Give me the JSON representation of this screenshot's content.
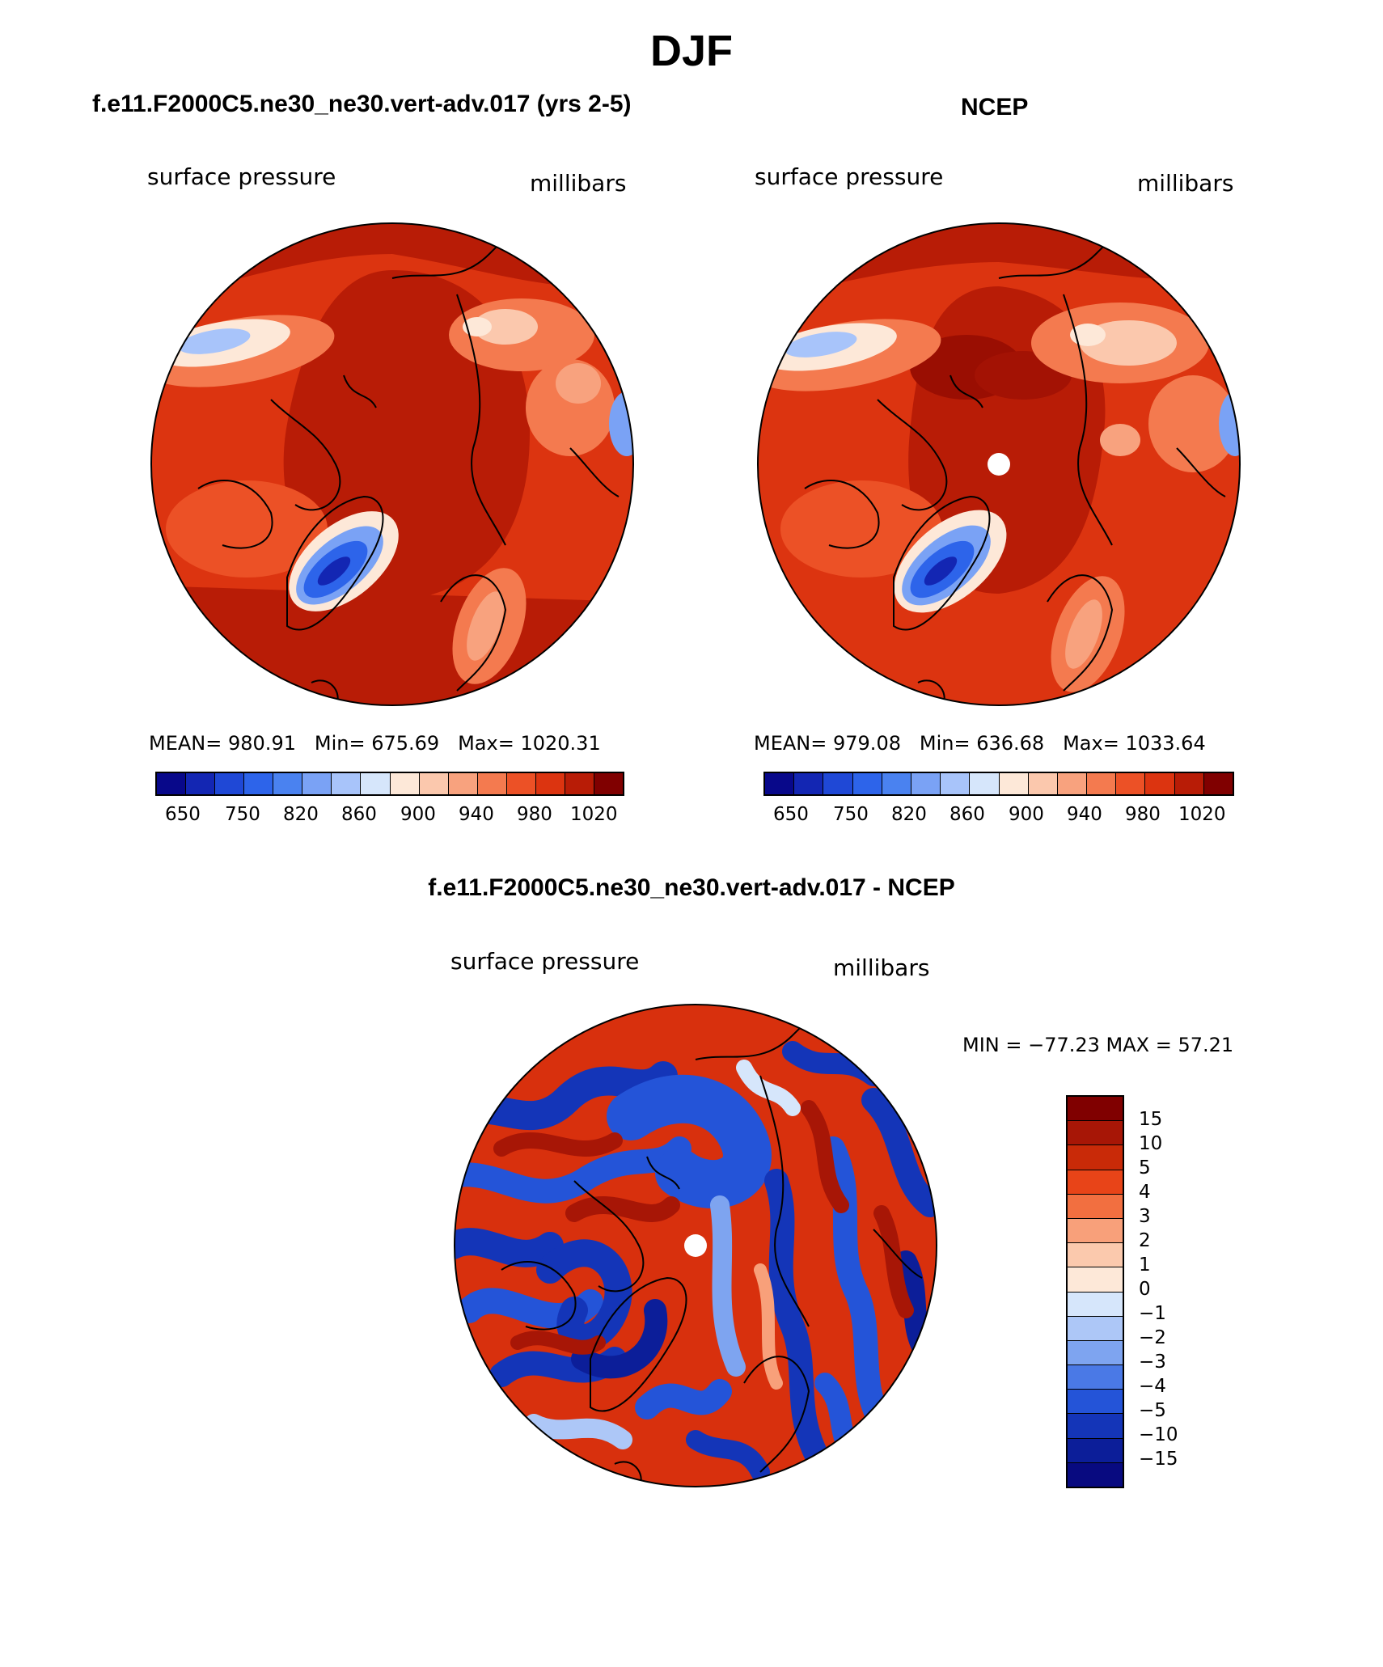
{
  "title": "DJF",
  "colors": {
    "abs_scale": [
      "#08088a",
      "#1326b3",
      "#1f48d6",
      "#2d64ea",
      "#4a82f0",
      "#7aa2f5",
      "#a8c4fa",
      "#d6e6fb",
      "#fde8d8",
      "#fbc8ad",
      "#f8a27e",
      "#f47a4f",
      "#ec5126",
      "#dc3410",
      "#b81c06",
      "#800000"
    ],
    "diff_scale": [
      "#800000",
      "#a71606",
      "#c92a08",
      "#e84418",
      "#f26f40",
      "#f8a07a",
      "#fbc9ad",
      "#fde8d8",
      "#d6e6fb",
      "#adc7f7",
      "#7ea4f0",
      "#4a79e6",
      "#2454d8",
      "#1435b8",
      "#0c1e99",
      "#080a80"
    ]
  },
  "panels": {
    "left": {
      "title": "f.e11.F2000C5.ne30_ne30.vert-adv.017 (yrs 2-5)",
      "variable": "surface pressure",
      "units": "millibars",
      "stats": {
        "mean_label": "MEAN=",
        "mean": "980.91",
        "min_label": "Min=",
        "min": "675.69",
        "max_label": "Max=",
        "max": "1020.31"
      },
      "ticks": [
        "650",
        "750",
        "820",
        "860",
        "900",
        "940",
        "980",
        "1020"
      ]
    },
    "right": {
      "title": "NCEP",
      "variable": "surface pressure",
      "units": "millibars",
      "stats": {
        "mean_label": "MEAN=",
        "mean": "979.08",
        "min_label": "Min=",
        "min": "636.68",
        "max_label": "Max=",
        "max": "1033.64"
      },
      "ticks": [
        "650",
        "750",
        "820",
        "860",
        "900",
        "940",
        "980",
        "1020"
      ]
    },
    "diff": {
      "title": "f.e11.F2000C5.ne30_ne30.vert-adv.017 - NCEP",
      "variable": "surface pressure",
      "units": "millibars",
      "minmax": "MIN = −77.23 MAX =  57.21",
      "labels": [
        "15",
        "10",
        "5",
        "4",
        "3",
        "2",
        "1",
        "0",
        "−1",
        "−2",
        "−3",
        "−4",
        "−5",
        "−10",
        "−15"
      ]
    }
  }
}
